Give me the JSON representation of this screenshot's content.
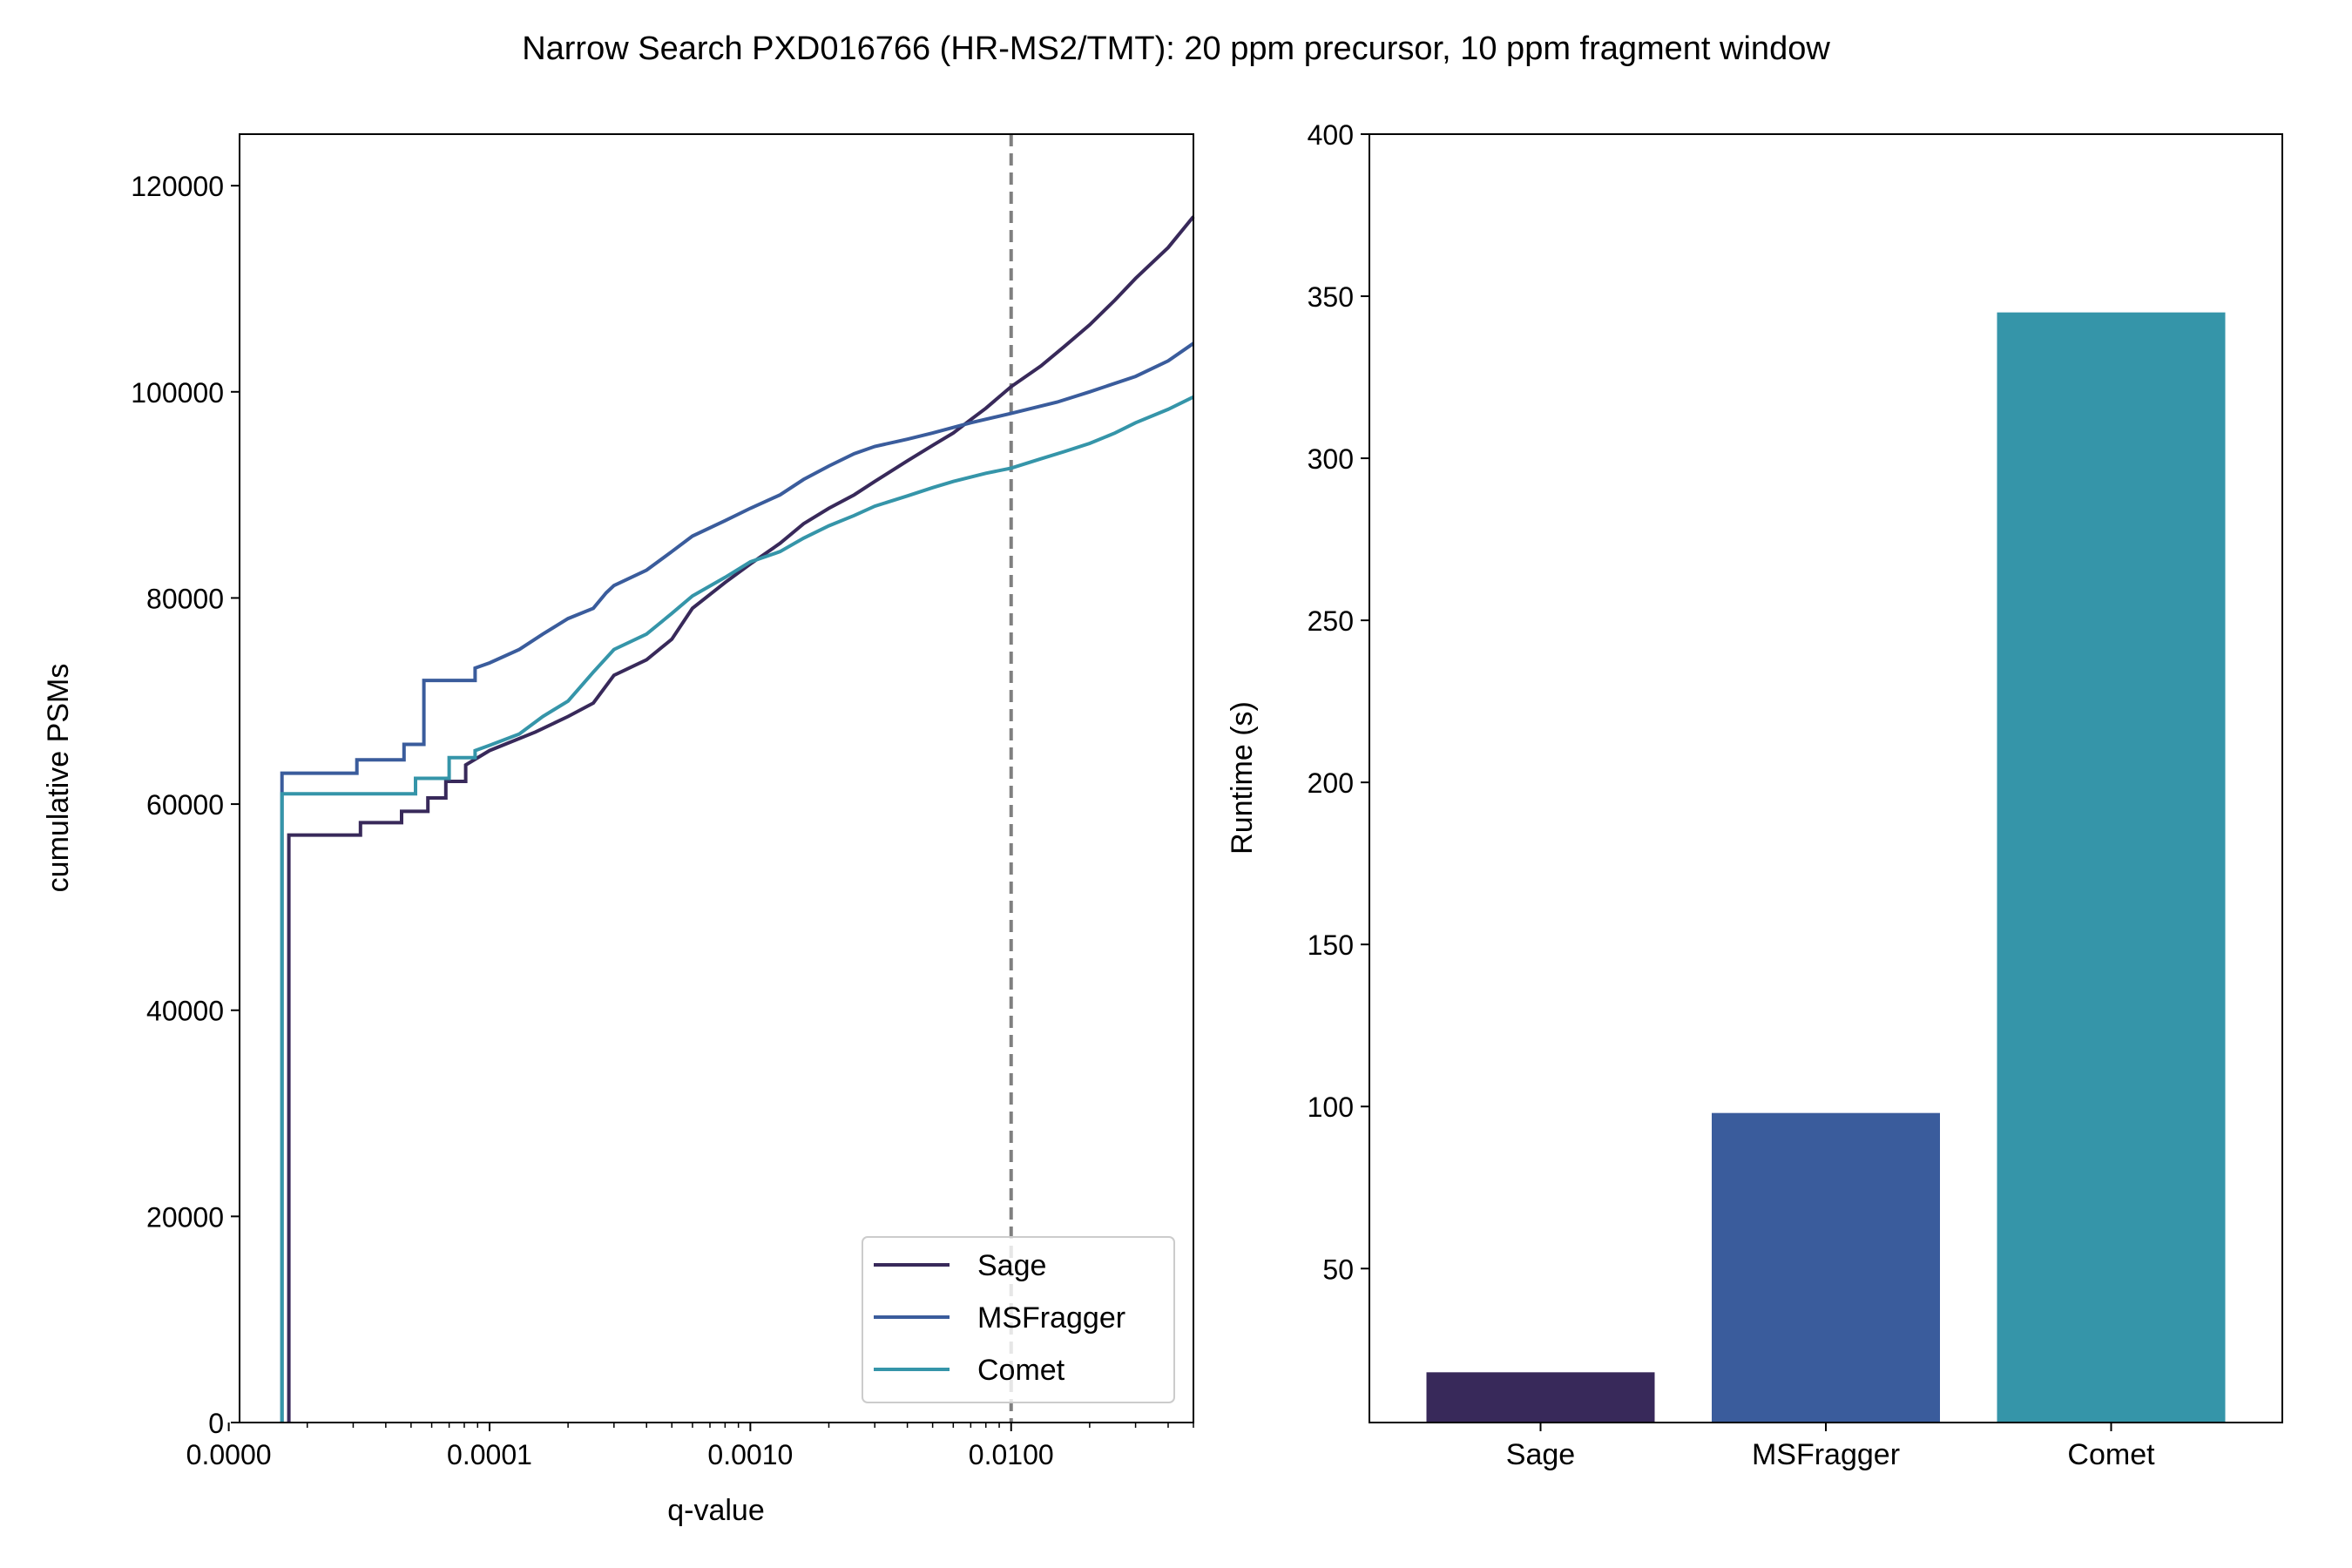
{
  "figure": {
    "title": "Narrow Search PXD016766 (HR-MS2/TMT): 20 ppm precursor, 10 ppm fragment window"
  },
  "colors": {
    "Sage": "#38295a",
    "MSFragger": "#3a5c9c",
    "Comet": "#3595a9",
    "reference_line": "#808080"
  },
  "chart_data": [
    {
      "type": "line",
      "xlabel": "q-value",
      "ylabel": "cumulative PSMs",
      "x_scale": "log",
      "xlim": [
        1.1e-05,
        0.05
      ],
      "ylim": [
        0,
        125000
      ],
      "x_ticks": [
        {
          "value": 1e-05,
          "label": "0.0000"
        },
        {
          "value": 0.0001,
          "label": "0.0001"
        },
        {
          "value": 0.001,
          "label": "0.0010"
        },
        {
          "value": 0.01,
          "label": "0.0100"
        }
      ],
      "y_ticks": [
        {
          "value": 0,
          "label": "0"
        },
        {
          "value": 20000,
          "label": "20000"
        },
        {
          "value": 40000,
          "label": "40000"
        },
        {
          "value": 60000,
          "label": "60000"
        },
        {
          "value": 80000,
          "label": "80000"
        },
        {
          "value": 100000,
          "label": "100000"
        },
        {
          "value": 120000,
          "label": "120000"
        }
      ],
      "reference_line": {
        "x": 0.01,
        "style": "dashed"
      },
      "legend_position": "lower right",
      "series": [
        {
          "name": "Sage",
          "x": [
            1.7e-05,
            1.7e-05,
            3.2e-05,
            3.2e-05,
            4.6e-05,
            4.6e-05,
            5.8e-05,
            5.8e-05,
            6.8e-05,
            6.8e-05,
            8.1e-05,
            8.1e-05,
            0.0001,
            0.00015,
            0.0002,
            0.00025,
            0.0003,
            0.0004,
            0.0005,
            0.0006,
            0.0008,
            0.001,
            0.0013,
            0.0016,
            0.002,
            0.0025,
            0.003,
            0.004,
            0.005,
            0.006,
            0.007,
            0.008,
            0.01,
            0.013,
            0.016,
            0.02,
            0.025,
            0.03,
            0.04,
            0.05
          ],
          "y": [
            0,
            57000,
            57000,
            58200,
            58200,
            59300,
            59300,
            60600,
            60600,
            62200,
            62200,
            63800,
            65200,
            67000,
            68500,
            69800,
            72500,
            74000,
            76000,
            79000,
            81500,
            83300,
            85300,
            87200,
            88700,
            90000,
            91300,
            93300,
            94800,
            96000,
            97300,
            98400,
            100500,
            102500,
            104400,
            106500,
            108900,
            111000,
            114000,
            117000
          ]
        },
        {
          "name": "MSFragger",
          "x": [
            1.6e-05,
            1.6e-05,
            3.1e-05,
            3.1e-05,
            4.7e-05,
            4.7e-05,
            5.6e-05,
            5.6e-05,
            8.8e-05,
            8.8e-05,
            0.0001,
            0.00013,
            0.00016,
            0.0002,
            0.00025,
            0.00028,
            0.0003,
            0.0004,
            0.0005,
            0.0006,
            0.0008,
            0.001,
            0.0013,
            0.0016,
            0.002,
            0.0025,
            0.003,
            0.004,
            0.005,
            0.007,
            0.01,
            0.015,
            0.02,
            0.03,
            0.04,
            0.05
          ],
          "y": [
            0,
            63000,
            63000,
            64300,
            64300,
            65800,
            65800,
            72000,
            72000,
            73200,
            73700,
            75000,
            76500,
            78000,
            79000,
            80500,
            81200,
            82700,
            84500,
            86000,
            87500,
            88700,
            90000,
            91500,
            92800,
            94000,
            94700,
            95400,
            96000,
            97000,
            97900,
            99000,
            100000,
            101500,
            103000,
            104700
          ]
        },
        {
          "name": "Comet",
          "x": [
            1.6e-05,
            1.6e-05,
            5.2e-05,
            5.2e-05,
            7e-05,
            7e-05,
            8.8e-05,
            8.8e-05,
            0.0001,
            0.00013,
            0.00016,
            0.0002,
            0.00025,
            0.0003,
            0.0004,
            0.0005,
            0.0006,
            0.0008,
            0.001,
            0.0013,
            0.0016,
            0.002,
            0.0025,
            0.003,
            0.004,
            0.005,
            0.006,
            0.008,
            0.01,
            0.013,
            0.016,
            0.02,
            0.025,
            0.03,
            0.04,
            0.05
          ],
          "y": [
            0,
            61000,
            61000,
            62500,
            62500,
            64500,
            64500,
            65200,
            65700,
            66800,
            68500,
            70000,
            72800,
            75000,
            76500,
            78500,
            80200,
            82000,
            83500,
            84500,
            85800,
            87000,
            88000,
            88900,
            89900,
            90700,
            91300,
            92100,
            92600,
            93500,
            94200,
            95000,
            96000,
            97000,
            98300,
            99500
          ]
        }
      ]
    },
    {
      "type": "bar",
      "categories": [
        "Sage",
        "MSFragger",
        "Comet"
      ],
      "values": [
        18,
        98,
        345
      ],
      "ylabel": "Runtime (s)",
      "xlabel": "",
      "ylim": [
        0,
        400
      ],
      "y_ticks": [
        {
          "value": 50,
          "label": "50"
        },
        {
          "value": 100,
          "label": "100"
        },
        {
          "value": 150,
          "label": "150"
        },
        {
          "value": 200,
          "label": "200"
        },
        {
          "value": 250,
          "label": "250"
        },
        {
          "value": 300,
          "label": "300"
        },
        {
          "value": 350,
          "label": "350"
        },
        {
          "value": 400,
          "label": "400"
        }
      ]
    }
  ]
}
